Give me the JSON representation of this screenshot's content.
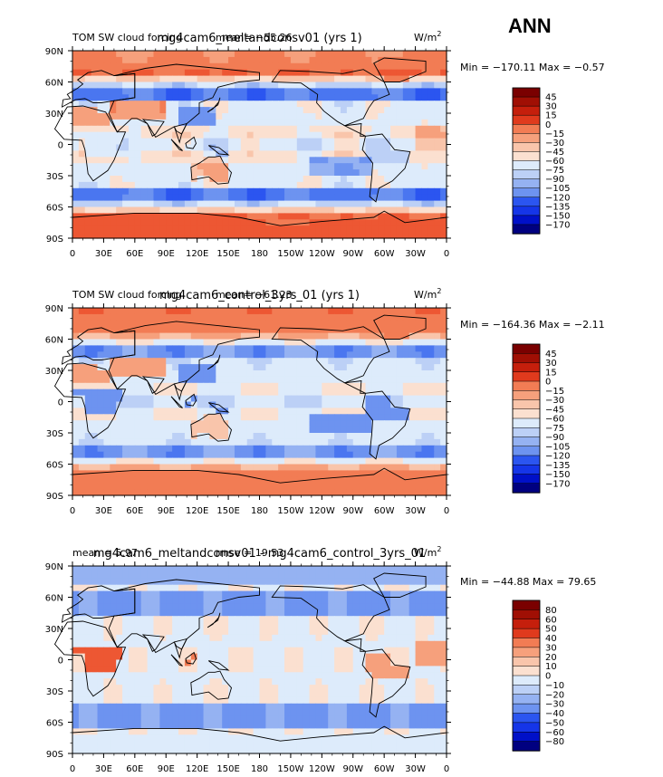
{
  "season": "ANN",
  "colors": {
    "neg": [
      "#000080",
      "#0010c8",
      "#1535e8",
      "#2b55f0",
      "#4a76f0",
      "#6d93f0",
      "#95b2f2",
      "#bcd0f6",
      "#ddebfb"
    ],
    "pos": [
      "#fbe0d0",
      "#f9c5ab",
      "#f6a07c",
      "#f27c54",
      "#ed5733",
      "#e03a1d",
      "#c51f0c",
      "#a00f04",
      "#7a0000"
    ]
  },
  "chart_data": [
    {
      "type": "heatmap",
      "title": "mg4cam6_meltandconsv01 (yrs 1)",
      "subtitle_left": "TOM SW cloud forcing",
      "stat_text": "mean= −55.26",
      "units": "W/m",
      "units_sup": "2",
      "range_text": "Min = −170.11 Max =  −0.57",
      "x_ticks": [
        "0",
        "30E",
        "60E",
        "90E",
        "120E",
        "150E",
        "180",
        "150W",
        "120W",
        "90W",
        "60W",
        "30W",
        "0"
      ],
      "y_ticks": [
        "90N",
        "60N",
        "30N",
        "0",
        "30S",
        "60S",
        "90S"
      ],
      "colorbar": [
        "45",
        "30",
        "15",
        "0",
        "−15",
        "−30",
        "−45",
        "−60",
        "−75",
        "−90",
        "−105",
        "−120",
        "−135",
        "−150",
        "−170"
      ],
      "field": "control_plus"
    },
    {
      "type": "heatmap",
      "title": "mg4cam6_control_3yrs_01 (yrs 1)",
      "subtitle_left": "TOM SW cloud forcing",
      "stat_text": "mean= −61.23",
      "units": "W/m",
      "units_sup": "2",
      "range_text": "Min = −164.36 Max =  −2.11",
      "x_ticks": [
        "0",
        "30E",
        "60E",
        "90E",
        "120E",
        "150E",
        "180",
        "150W",
        "120W",
        "90W",
        "60W",
        "30W",
        "0"
      ],
      "y_ticks": [
        "90N",
        "60N",
        "30N",
        "0",
        "30S",
        "60S",
        "90S"
      ],
      "colorbar": [
        "45",
        "30",
        "15",
        "0",
        "−15",
        "−30",
        "−45",
        "−60",
        "−75",
        "−90",
        "−105",
        "−120",
        "−135",
        "−150",
        "−170"
      ],
      "field": "control"
    },
    {
      "type": "heatmap",
      "title": "mg4cam6_meltandconsv01 - mg4cam6_control_3yrs_01",
      "subtitle_left": "mean =    5.97",
      "stat_text": "rmse =   19.53",
      "units": "W/m",
      "units_sup": "2",
      "range_text": "Min = −44.88 Max =   79.65",
      "x_ticks": [
        "0",
        "30E",
        "60E",
        "90E",
        "120E",
        "150E",
        "180",
        "150W",
        "120W",
        "90W",
        "60W",
        "30W",
        "0"
      ],
      "y_ticks": [
        "90N",
        "60N",
        "30N",
        "0",
        "30S",
        "60S",
        "90S"
      ],
      "colorbar": [
        "80",
        "60",
        "50",
        "40",
        "30",
        "20",
        "10",
        "0",
        "−10",
        "−20",
        "−30",
        "−40",
        "−50",
        "−60",
        "−80"
      ],
      "field": "diff"
    }
  ]
}
